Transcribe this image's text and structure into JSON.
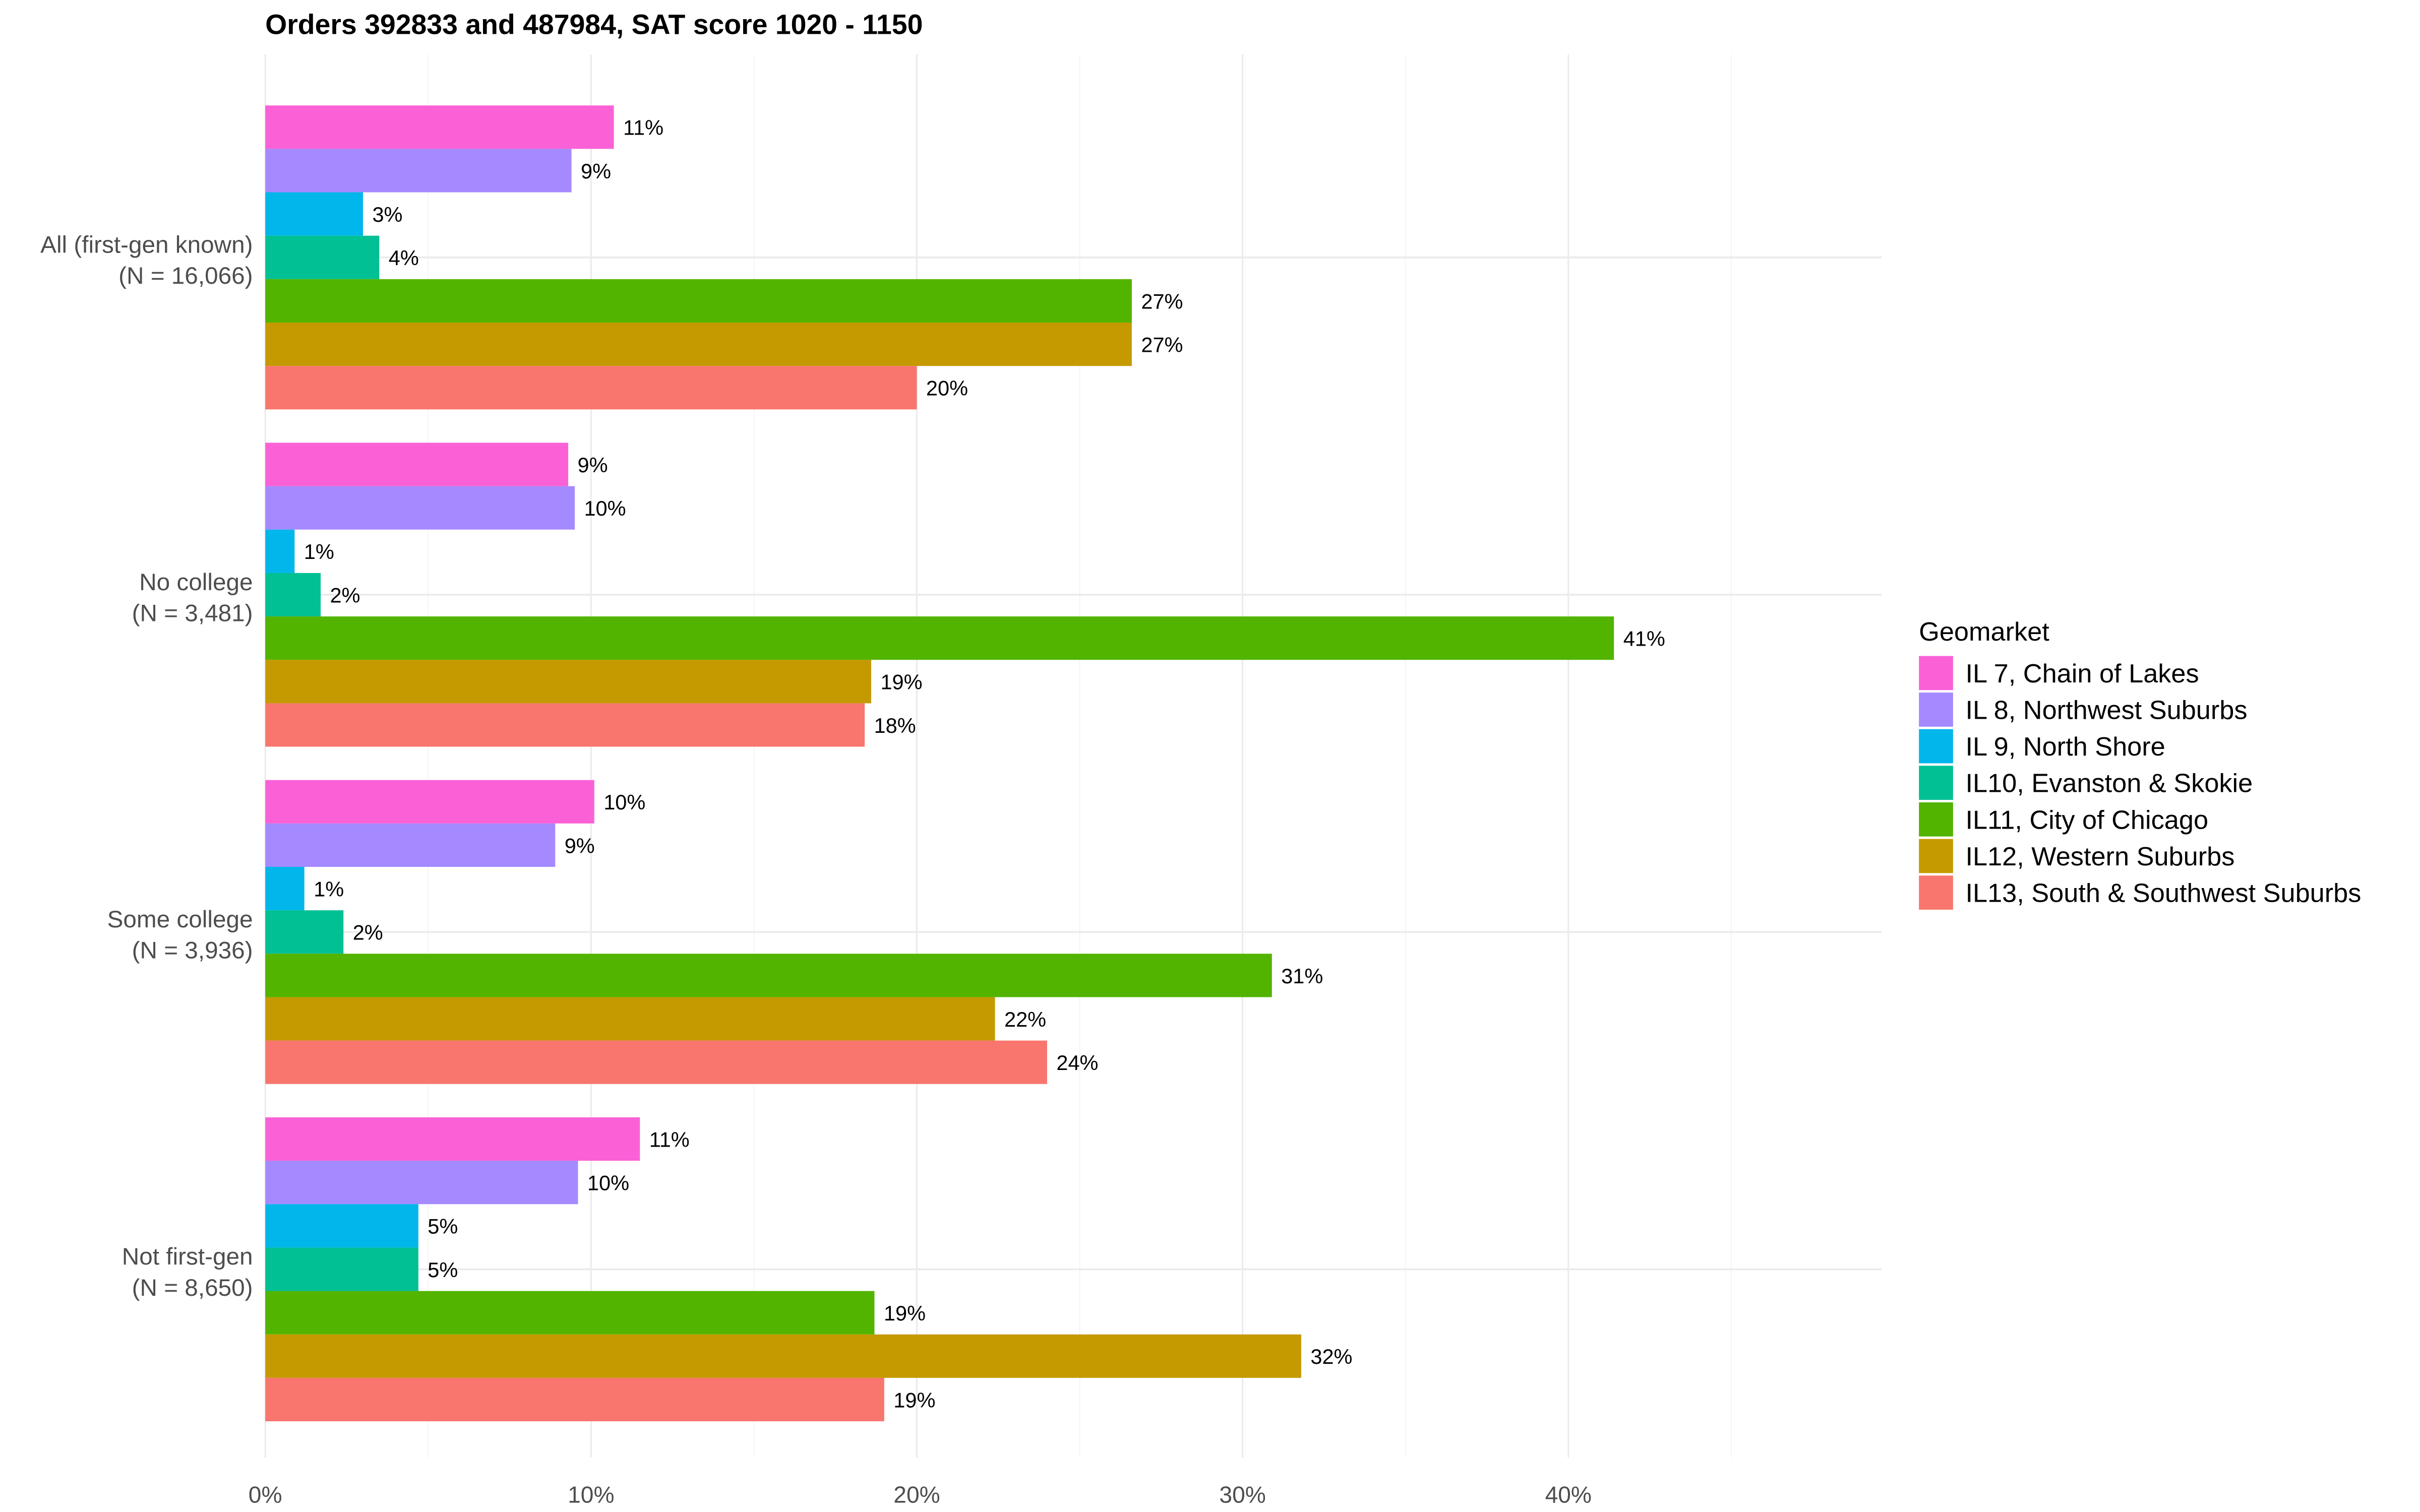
{
  "chart_data": {
    "type": "bar",
    "orientation": "horizontal",
    "title": "Orders 392833 and 487984, SAT score 1020 - 1150",
    "xlabel": "",
    "ylabel": "",
    "xlim": [
      0,
      49.6
    ],
    "x_ticks": [
      0,
      10,
      20,
      30,
      40
    ],
    "x_tick_labels": [
      "0%",
      "10%",
      "20%",
      "30%",
      "40%"
    ],
    "grid": true,
    "legend_position": "right",
    "legend_title": "Geomarket",
    "categories": [
      "All (first-gen known)\n(N = 16,066)",
      "No college\n(N = 3,481)",
      "Some college\n(N = 3,936)",
      "Not first-gen\n(N = 8,650)"
    ],
    "category_lines": [
      [
        "All (first-gen known)",
        "(N = 16,066)"
      ],
      [
        "No college",
        "(N = 3,481)"
      ],
      [
        "Some college",
        "(N = 3,936)"
      ],
      [
        "Not first-gen",
        "(N = 8,650)"
      ]
    ],
    "series": [
      {
        "name": "IL 7, Chain of Lakes",
        "color": "#FB61D7",
        "values": [
          10.7,
          9.3,
          10.1,
          11.5
        ],
        "labels": [
          "11%",
          "9%",
          "10%",
          "11%"
        ]
      },
      {
        "name": "IL 8, Northwest Suburbs",
        "color": "#A58AFF",
        "values": [
          9.4,
          9.5,
          8.9,
          9.6
        ],
        "labels": [
          "9%",
          "10%",
          "9%",
          "10%"
        ]
      },
      {
        "name": "IL 9, North Shore",
        "color": "#00B6EB",
        "values": [
          3.0,
          0.9,
          1.2,
          4.7
        ],
        "labels": [
          "3%",
          "1%",
          "1%",
          "5%"
        ]
      },
      {
        "name": "IL10, Evanston & Skokie",
        "color": "#00C094",
        "values": [
          3.5,
          1.7,
          2.4,
          4.7
        ],
        "labels": [
          "4%",
          "2%",
          "2%",
          "5%"
        ]
      },
      {
        "name": "IL11, City of Chicago",
        "color": "#53B400",
        "values": [
          26.6,
          41.4,
          30.9,
          18.7
        ],
        "labels": [
          "27%",
          "41%",
          "31%",
          "19%"
        ]
      },
      {
        "name": "IL12, Western Suburbs",
        "color": "#C49A00",
        "values": [
          26.6,
          18.6,
          22.4,
          31.8
        ],
        "labels": [
          "27%",
          "19%",
          "22%",
          "32%"
        ]
      },
      {
        "name": "IL13, South & Southwest Suburbs",
        "color": "#F8766D",
        "values": [
          20.0,
          18.4,
          24.0,
          19.0
        ],
        "labels": [
          "20%",
          "18%",
          "24%",
          "19%"
        ]
      }
    ]
  }
}
